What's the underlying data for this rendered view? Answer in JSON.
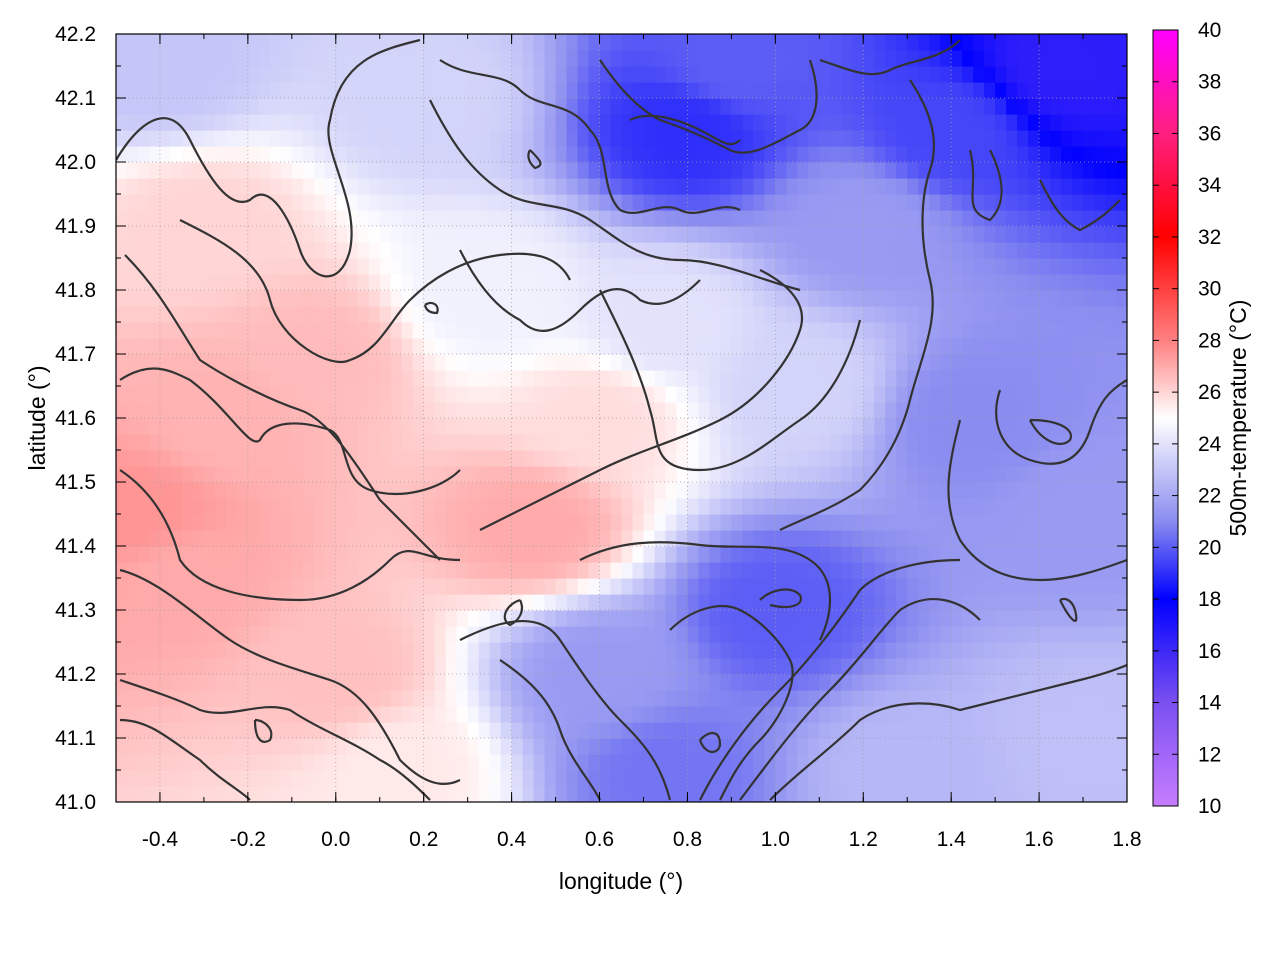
{
  "chart_data": {
    "type": "heatmap",
    "title": "",
    "xlabel": "longitude (°)",
    "ylabel": "latitude (°)",
    "colorbar_label": "500m-temperature (°C)",
    "xlim": [
      -0.5,
      1.8
    ],
    "ylim": [
      41.0,
      42.2
    ],
    "x_ticks": [
      "-0.4",
      "-0.2",
      "0.0",
      "0.2",
      "0.4",
      "0.6",
      "0.8",
      "1.0",
      "1.2",
      "1.4",
      "1.6",
      "1.8"
    ],
    "x_tick_values": [
      -0.4,
      -0.2,
      0.0,
      0.2,
      0.4,
      0.6,
      0.8,
      1.0,
      1.2,
      1.4,
      1.6,
      1.8
    ],
    "y_ticks": [
      "41.0",
      "41.1",
      "41.2",
      "41.3",
      "41.4",
      "41.5",
      "41.6",
      "41.7",
      "41.8",
      "41.9",
      "42.0",
      "42.1",
      "42.2"
    ],
    "y_tick_values": [
      41.0,
      41.1,
      41.2,
      41.3,
      41.4,
      41.5,
      41.6,
      41.7,
      41.8,
      41.9,
      42.0,
      42.1,
      42.2
    ],
    "colorbar_ticks": [
      "10",
      "12",
      "14",
      "16",
      "18",
      "20",
      "22",
      "24",
      "26",
      "28",
      "30",
      "32",
      "34",
      "36",
      "38",
      "40"
    ],
    "colorbar_tick_values": [
      10,
      12,
      14,
      16,
      18,
      20,
      22,
      24,
      26,
      28,
      30,
      32,
      34,
      36,
      38,
      40
    ],
    "colorbar_range": [
      10,
      40
    ],
    "grid": true,
    "colormap": [
      {
        "value": 10,
        "color": "#c77dff"
      },
      {
        "value": 14,
        "color": "#7a50f0"
      },
      {
        "value": 18,
        "color": "#0000ff"
      },
      {
        "value": 21,
        "color": "#8a8cf0"
      },
      {
        "value": 25,
        "color": "#ffffff"
      },
      {
        "value": 28,
        "color": "#ff8080"
      },
      {
        "value": 32,
        "color": "#ff0000"
      },
      {
        "value": 36,
        "color": "#ff1f80"
      },
      {
        "value": 40,
        "color": "#ff00ff"
      }
    ],
    "field_samples": [
      {
        "lon": -0.45,
        "lat": 41.45,
        "value": 27.5
      },
      {
        "lon": -0.35,
        "lat": 41.35,
        "value": 27.0
      },
      {
        "lon": -0.25,
        "lat": 41.6,
        "value": 26.8
      },
      {
        "lon": -0.05,
        "lat": 41.7,
        "value": 26.6
      },
      {
        "lon": 0.0,
        "lat": 41.2,
        "value": 26.5
      },
      {
        "lon": -0.3,
        "lat": 41.9,
        "value": 26.0
      },
      {
        "lon": 0.45,
        "lat": 41.43,
        "value": 27.0
      },
      {
        "lon": 0.6,
        "lat": 41.6,
        "value": 25.8
      },
      {
        "lon": 0.15,
        "lat": 41.05,
        "value": 25.5
      },
      {
        "lon": -0.4,
        "lat": 42.15,
        "value": 23.0
      },
      {
        "lon": 0.2,
        "lat": 42.1,
        "value": 23.5
      },
      {
        "lon": 0.35,
        "lat": 41.8,
        "value": 24.5
      },
      {
        "lon": 0.75,
        "lat": 41.75,
        "value": 24.0
      },
      {
        "lon": 0.9,
        "lat": 42.15,
        "value": 20.0
      },
      {
        "lon": 0.8,
        "lat": 42.05,
        "value": 19.0
      },
      {
        "lon": 1.4,
        "lat": 42.05,
        "value": 19.5
      },
      {
        "lon": 1.65,
        "lat": 42.15,
        "value": 16.5
      },
      {
        "lon": 1.2,
        "lat": 41.9,
        "value": 21.5
      },
      {
        "lon": 1.45,
        "lat": 41.6,
        "value": 21.0
      },
      {
        "lon": 1.0,
        "lat": 41.3,
        "value": 20.0
      },
      {
        "lon": 0.6,
        "lat": 41.2,
        "value": 21.5
      },
      {
        "lon": 0.75,
        "lat": 41.05,
        "value": 20.5
      },
      {
        "lon": 1.3,
        "lat": 41.05,
        "value": 22.5
      },
      {
        "lon": 1.7,
        "lat": 41.1,
        "value": 22.8
      },
      {
        "lon": 1.7,
        "lat": 41.45,
        "value": 21.5
      },
      {
        "lon": 1.05,
        "lat": 41.65,
        "value": 23.5
      }
    ]
  }
}
